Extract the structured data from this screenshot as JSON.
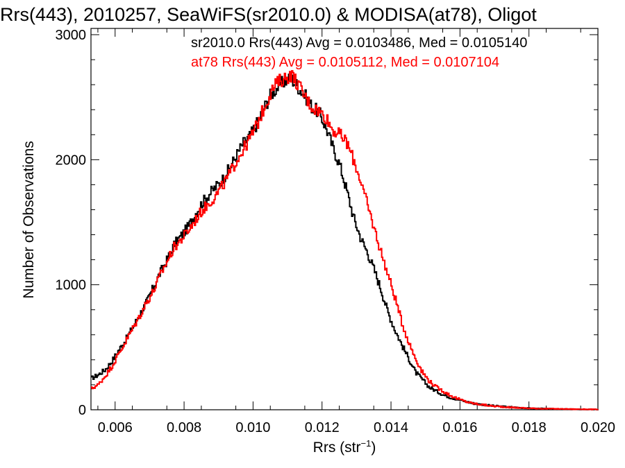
{
  "chart_data": {
    "type": "line",
    "title": "Rrs(443), 2010257, SeaWiFS(sr2010.0) & MODISA(at78), Oligot",
    "xlabel": "Rrs (str",
    "xlabel_sup": "−1",
    "xlabel_close": ")",
    "ylabel": "Number of Observations",
    "xlim": [
      0.0053,
      0.02
    ],
    "ylim": [
      0,
      3050
    ],
    "x_ticks": [
      "0.006",
      "0.008",
      "0.010",
      "0.012",
      "0.014",
      "0.016",
      "0.018",
      "0.020"
    ],
    "y_ticks": [
      "0",
      "1000",
      "2000",
      "3000"
    ],
    "annotations": [
      {
        "text": "sr2010.0 Rrs(443) Avg = 0.0103486, Med = 0.0105140",
        "color": "#000000"
      },
      {
        "text": "at78 Rrs(443) Avg = 0.0105112, Med = 0.0107104",
        "color": "#ff0000"
      }
    ],
    "series": [
      {
        "name": "sr2010.0",
        "color": "#000000",
        "x": [
          0.0053,
          0.0055,
          0.0057,
          0.0059,
          0.0061,
          0.0063,
          0.0065,
          0.0067,
          0.0069,
          0.0071,
          0.0073,
          0.0075,
          0.0077,
          0.0079,
          0.0081,
          0.0083,
          0.0085,
          0.0087,
          0.0089,
          0.0091,
          0.0093,
          0.0095,
          0.0097,
          0.0099,
          0.0101,
          0.0103,
          0.0105,
          0.0107,
          0.0109,
          0.0111,
          0.0113,
          0.0115,
          0.0117,
          0.0119,
          0.0121,
          0.0123,
          0.0125,
          0.0127,
          0.0129,
          0.0131,
          0.0133,
          0.0135,
          0.0137,
          0.0139,
          0.0141,
          0.0143,
          0.0145,
          0.0147,
          0.0149,
          0.0151,
          0.0153,
          0.0155,
          0.0157,
          0.0159,
          0.0161,
          0.0163,
          0.0165,
          0.0167,
          0.0169,
          0.0171,
          0.0173,
          0.0175,
          0.018,
          0.0185,
          0.019,
          0.0195,
          0.02
        ],
        "y": [
          250,
          280,
          320,
          390,
          480,
          560,
          660,
          760,
          860,
          980,
          1100,
          1200,
          1320,
          1390,
          1460,
          1560,
          1650,
          1720,
          1780,
          1840,
          1930,
          2030,
          2130,
          2190,
          2290,
          2410,
          2520,
          2580,
          2630,
          2650,
          2580,
          2510,
          2420,
          2380,
          2260,
          2100,
          1960,
          1760,
          1540,
          1380,
          1260,
          1120,
          960,
          780,
          640,
          520,
          410,
          300,
          240,
          180,
          150,
          120,
          100,
          85,
          70,
          55,
          45,
          40,
          32,
          28,
          24,
          20,
          12,
          8,
          5,
          3,
          2
        ]
      },
      {
        "name": "at78",
        "color": "#ff0000",
        "x": [
          0.0053,
          0.0055,
          0.0057,
          0.0059,
          0.0061,
          0.0063,
          0.0065,
          0.0067,
          0.0069,
          0.0071,
          0.0073,
          0.0075,
          0.0077,
          0.0079,
          0.0081,
          0.0083,
          0.0085,
          0.0087,
          0.0089,
          0.0091,
          0.0093,
          0.0095,
          0.0097,
          0.0099,
          0.0101,
          0.0103,
          0.0105,
          0.0107,
          0.0109,
          0.0111,
          0.0113,
          0.0115,
          0.0117,
          0.0119,
          0.0121,
          0.0123,
          0.0125,
          0.0127,
          0.0129,
          0.0131,
          0.0133,
          0.0135,
          0.0137,
          0.0139,
          0.0141,
          0.0143,
          0.0145,
          0.0147,
          0.0149,
          0.0151,
          0.0153,
          0.0155,
          0.0157,
          0.0159,
          0.0161,
          0.0163,
          0.0165,
          0.0167,
          0.0169,
          0.0171,
          0.0173,
          0.0175,
          0.018,
          0.0185,
          0.019,
          0.0195,
          0.02
        ],
        "y": [
          170,
          200,
          270,
          350,
          450,
          550,
          650,
          750,
          860,
          950,
          1080,
          1190,
          1300,
          1360,
          1430,
          1510,
          1590,
          1650,
          1710,
          1790,
          1880,
          1990,
          2080,
          2170,
          2280,
          2410,
          2540,
          2620,
          2650,
          2680,
          2600,
          2500,
          2420,
          2390,
          2340,
          2240,
          2200,
          2140,
          2000,
          1840,
          1640,
          1450,
          1260,
          1080,
          900,
          700,
          540,
          410,
          300,
          230,
          180,
          150,
          115,
          90,
          70,
          55,
          45,
          38,
          30,
          26,
          22,
          18,
          12,
          8,
          6,
          4,
          3
        ]
      }
    ]
  }
}
